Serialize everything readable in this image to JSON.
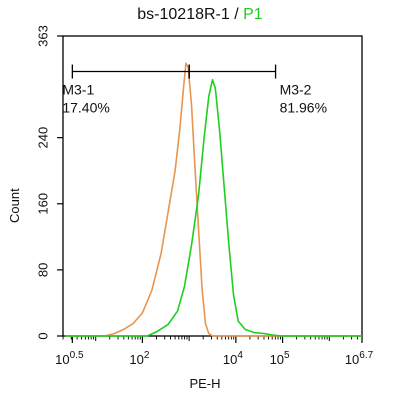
{
  "chart_data": {
    "type": "histogram",
    "title": {
      "text": "bs-10218R-1 / ",
      "highlight": "P1",
      "highlight_color": "#1fcf1f"
    },
    "xlabel": "PE-H",
    "ylabel": "Count",
    "x_scale": "log10",
    "xlim_exponent": [
      0.3,
      6.7
    ],
    "ylim": [
      0,
      363
    ],
    "x_ticks": [
      {
        "exp": 0.5,
        "base": "10",
        "sup": "0.5"
      },
      {
        "exp": 2,
        "base": "10",
        "sup": "2"
      },
      {
        "exp": 4,
        "base": "10",
        "sup": "4"
      },
      {
        "exp": 5,
        "base": "10",
        "sup": "5"
      },
      {
        "exp": 6.7,
        "base": "10",
        "sup": "6.7"
      }
    ],
    "y_ticks": [
      {
        "value": 0,
        "label": "0"
      },
      {
        "value": 80,
        "label": "80"
      },
      {
        "value": 160,
        "label": "160"
      },
      {
        "value": 240,
        "label": "240"
      },
      {
        "value": 363,
        "label": "363"
      }
    ],
    "series": [
      {
        "color": "#e8954f",
        "points": [
          [
            0.35,
            0
          ],
          [
            1.2,
            0
          ],
          [
            1.4,
            3
          ],
          [
            1.6,
            8
          ],
          [
            1.8,
            15
          ],
          [
            2.0,
            28
          ],
          [
            2.2,
            55
          ],
          [
            2.4,
            100
          ],
          [
            2.55,
            150
          ],
          [
            2.7,
            200
          ],
          [
            2.8,
            250
          ],
          [
            2.88,
            300
          ],
          [
            2.93,
            330
          ],
          [
            2.98,
            325
          ],
          [
            3.05,
            280
          ],
          [
            3.12,
            210
          ],
          [
            3.2,
            130
          ],
          [
            3.28,
            55
          ],
          [
            3.35,
            15
          ],
          [
            3.42,
            3
          ],
          [
            3.5,
            0
          ],
          [
            6.7,
            0
          ]
        ]
      },
      {
        "color": "#1fcf1f",
        "points": [
          [
            0.35,
            0
          ],
          [
            2.1,
            0
          ],
          [
            2.3,
            5
          ],
          [
            2.55,
            14
          ],
          [
            2.75,
            30
          ],
          [
            2.9,
            60
          ],
          [
            3.05,
            110
          ],
          [
            3.2,
            170
          ],
          [
            3.32,
            240
          ],
          [
            3.42,
            290
          ],
          [
            3.5,
            310
          ],
          [
            3.56,
            300
          ],
          [
            3.65,
            250
          ],
          [
            3.75,
            180
          ],
          [
            3.85,
            110
          ],
          [
            3.95,
            50
          ],
          [
            4.05,
            18
          ],
          [
            4.2,
            8
          ],
          [
            4.4,
            4
          ],
          [
            4.6,
            3
          ],
          [
            4.8,
            1
          ],
          [
            5.0,
            0
          ],
          [
            6.7,
            0
          ]
        ]
      }
    ],
    "gates": [
      {
        "name": "M3-1",
        "percent": "17.40%",
        "from_exp": 0.5,
        "to_exp": 3.0,
        "bar_y": 320
      },
      {
        "name": "M3-2",
        "percent": "81.96%",
        "from_exp": 3.0,
        "to_exp": 4.85,
        "bar_y": 320
      }
    ]
  }
}
